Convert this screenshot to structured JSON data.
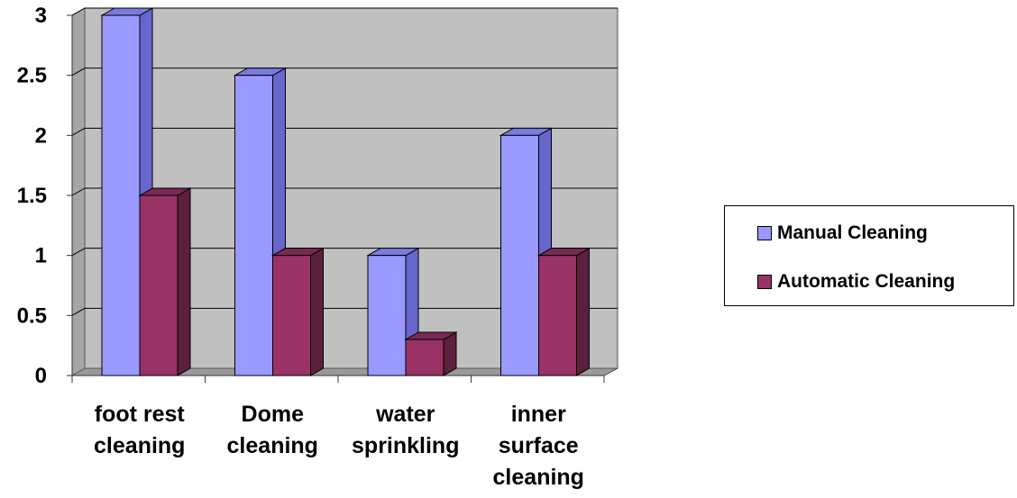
{
  "chart_data": {
    "type": "bar",
    "categories": [
      [
        "foot rest",
        "cleaning"
      ],
      [
        "Dome",
        "cleaning"
      ],
      [
        "water",
        "sprinkling"
      ],
      [
        "inner",
        "surface",
        "cleaning"
      ]
    ],
    "series": [
      {
        "name": "Manual Cleaning",
        "values": [
          3,
          2.5,
          1,
          2
        ],
        "color": "#9999ff",
        "side_color": "#6666cc",
        "top_color": "#7a7ae0"
      },
      {
        "name": "Automatic Cleaning",
        "values": [
          1.5,
          1,
          0.3,
          1
        ],
        "color": "#993366",
        "side_color": "#5c1f3d",
        "top_color": "#7a2952"
      }
    ],
    "yticks": [
      "0",
      "0.5",
      "1",
      "1.5",
      "2",
      "2.5",
      "3"
    ],
    "ylim": [
      0,
      3
    ],
    "grid": true,
    "legend_position": "right",
    "wall_color": "#c0c0c0",
    "title": "",
    "xlabel": "",
    "ylabel": ""
  }
}
